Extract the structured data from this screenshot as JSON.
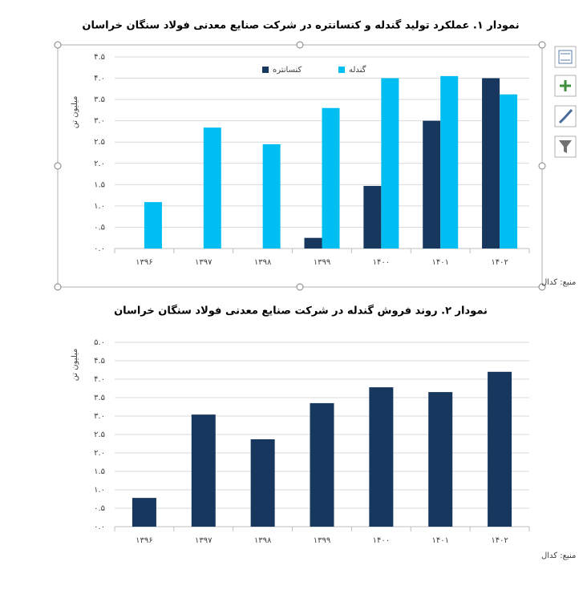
{
  "chart_data": [
    {
      "type": "bar",
      "title": "نمودار ۱. عملکرد تولید گندله و کنسانتره در شرکت صنایع معدنی فولاد سنگان خراسان",
      "y_label": "میلیون تن",
      "source": "منبع: کدال",
      "categories": [
        "۱۳۹۶",
        "۱۳۹۷",
        "۱۳۹۸",
        "۱۳۹۹",
        "۱۴۰۰",
        "۱۴۰۱",
        "۱۴۰۲"
      ],
      "series": [
        {
          "name": "کنسانتره",
          "color": "#17375e",
          "values": [
            null,
            null,
            null,
            0.25,
            1.47,
            3.0,
            4.0
          ]
        },
        {
          "name": "گندله",
          "color": "#00bef2",
          "values": [
            1.09,
            2.84,
            2.45,
            3.3,
            4.0,
            4.05,
            3.62
          ]
        }
      ],
      "ylim": [
        0,
        4.5
      ],
      "yticks": [
        {
          "value": 0,
          "label": "۰.۰"
        },
        {
          "value": 0.5,
          "label": "۰.۵"
        },
        {
          "value": 1,
          "label": "۱.۰"
        },
        {
          "value": 1.5,
          "label": "۱.۵"
        },
        {
          "value": 2,
          "label": "۲.۰"
        },
        {
          "value": 2.5,
          "label": "۲.۵"
        },
        {
          "value": 3,
          "label": "۳.۰"
        },
        {
          "value": 3.5,
          "label": "۳.۵"
        },
        {
          "value": 4,
          "label": "۴.۰"
        },
        {
          "value": 4.5,
          "label": "۴.۵"
        }
      ],
      "grid": true,
      "legend": "top"
    },
    {
      "type": "bar",
      "title": "نمودار ۲. روند فروش گندله در شرکت صنایع معدنی فولاد سنگان خراسان",
      "y_label": "میلیون تن",
      "source": "منبع: کدال",
      "categories": [
        "۱۳۹۶",
        "۱۳۹۷",
        "۱۳۹۸",
        "۱۳۹۹",
        "۱۴۰۰",
        "۱۴۰۱",
        "۱۴۰۲"
      ],
      "values": [
        0.78,
        3.04,
        2.37,
        3.35,
        3.78,
        3.65,
        4.2
      ],
      "color": "#17375e",
      "ylim": [
        0,
        5
      ],
      "yticks": [
        {
          "value": 0,
          "label": "۰.۰"
        },
        {
          "value": 0.5,
          "label": "۰.۵"
        },
        {
          "value": 1,
          "label": "۱.۰"
        },
        {
          "value": 1.5,
          "label": "۱.۵"
        },
        {
          "value": 2,
          "label": "۲.۰"
        },
        {
          "value": 2.5,
          "label": "۲.۵"
        },
        {
          "value": 3,
          "label": "۳.۰"
        },
        {
          "value": 3.5,
          "label": "۳.۵"
        },
        {
          "value": 4,
          "label": "۴.۰"
        },
        {
          "value": 4.5,
          "label": "۴.۵"
        },
        {
          "value": 5,
          "label": "۵.۰"
        }
      ],
      "grid": true
    }
  ]
}
